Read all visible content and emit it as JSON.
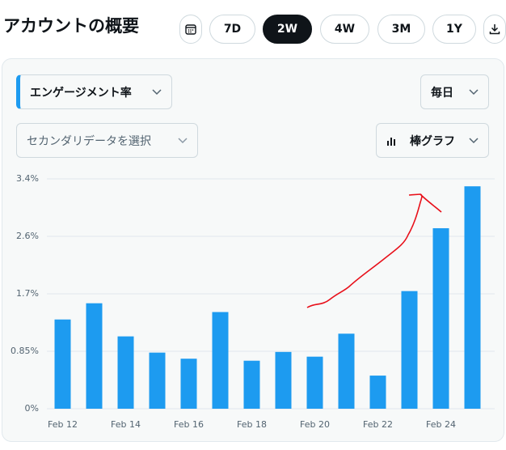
{
  "header": {
    "title": "アカウントの概要",
    "ranges": [
      "7D",
      "2W",
      "4W",
      "3M",
      "1Y"
    ]
  },
  "controls": {
    "metric": "エンゲージメント率",
    "interval": "毎日",
    "secondary": "セカンダリデータを選択",
    "chart_style": "棒グラフ"
  },
  "chart_data": {
    "type": "bar",
    "categories": [
      "Feb 12",
      null,
      "Feb 14",
      null,
      "Feb 16",
      null,
      "Feb 18",
      null,
      "Feb 20",
      null,
      "Feb 22",
      null,
      "Feb 24",
      null
    ],
    "values": [
      1.32,
      1.56,
      1.07,
      0.83,
      0.74,
      1.43,
      0.71,
      0.84,
      0.77,
      1.11,
      0.49,
      1.74,
      2.67,
      3.29
    ],
    "color": "#1d9bf0",
    "ylim": [
      0,
      3.4
    ],
    "yticks": [
      {
        "value": 0,
        "label": "0%"
      },
      {
        "value": 0.85,
        "label": "0.85%"
      },
      {
        "value": 1.7,
        "label": "1.7%"
      },
      {
        "value": 2.55,
        "label": "2.6%"
      },
      {
        "value": 3.4,
        "label": "3.4%"
      }
    ],
    "grid": true
  }
}
